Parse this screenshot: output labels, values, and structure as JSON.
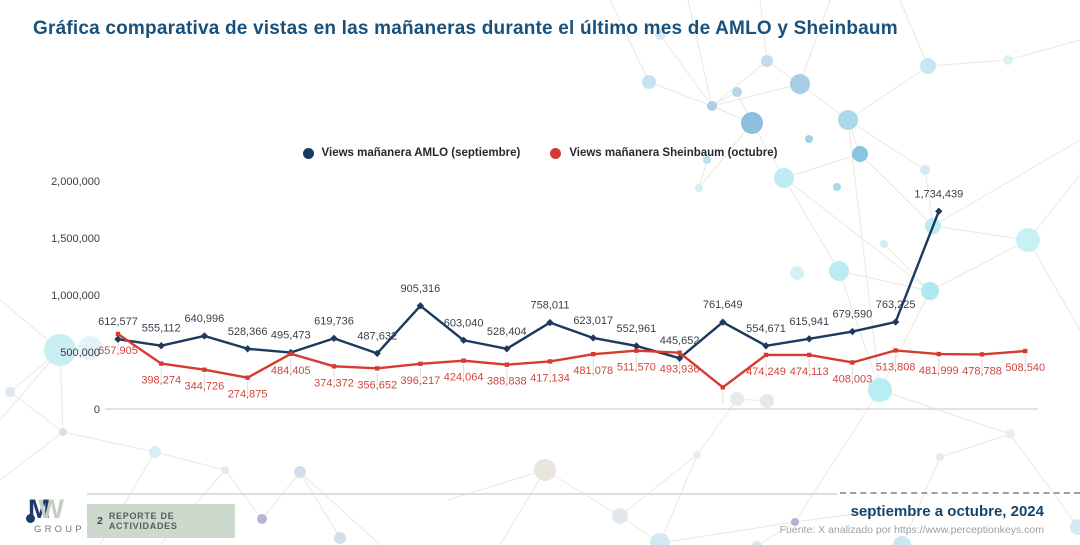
{
  "title": "Gráfica comparativa de vistas en las mañaneras durante el último mes de AMLO y Sheinbaum",
  "colors": {
    "title": "#17517c",
    "amlo_line": "#1b3a5e",
    "amlo_label": "#3a414b",
    "sheinbaum_line": "#d63b30",
    "sheinbaum_label": "#d0463c",
    "axis_line": "#d8d8d8",
    "tick_text": "#3c3c3c",
    "badge_bg": "#ccd9cc",
    "decor_cyan": "#b5ecf2",
    "decor_steel": "#8ebfdc"
  },
  "chart_data": {
    "type": "line",
    "title": "Gráfica comparativa de vistas en las mañaneras durante el último mes de AMLO y Sheinbaum",
    "xlabel": "",
    "ylabel": "",
    "ylim": [
      0,
      2000000
    ],
    "grid": false,
    "legend_position": "top-center",
    "yticks": [
      0,
      500000,
      1000000,
      1500000,
      2000000
    ],
    "ytick_labels": [
      "0",
      "500,000",
      "1,000,000",
      "1,500,000",
      "2,000,000"
    ],
    "series": [
      {
        "name": "Views mañanera AMLO (septiembre)",
        "color": "#1b3a5e",
        "label_color": "#3a414b",
        "label_dy": -14,
        "marker": "diamond",
        "values": [
          612577,
          555112,
          640996,
          528366,
          495473,
          619736,
          487632,
          905316,
          603040,
          528404,
          758011,
          623017,
          552961,
          445652,
          761649,
          554671,
          615941,
          679590,
          763225,
          1734439
        ],
        "labels": [
          "612,577",
          "555,112",
          "640,996",
          "528,366",
          "495,473",
          "619,736",
          "487,632",
          "905,316",
          "603,040",
          "528,404",
          "758,011",
          "623,017",
          "552,961",
          "445,652",
          "761,649",
          "554,671",
          "615,941",
          "679,590",
          "763,225",
          "1,734,439"
        ]
      },
      {
        "name": "Views mañanera Sheinbaum (octubre)",
        "color": "#d63b30",
        "label_color": "#d0463c",
        "label_dy": 20,
        "marker": "square",
        "values": [
          657905,
          398274,
          344726,
          274875,
          484405,
          374372,
          356652,
          396217,
          424064,
          388838,
          417134,
          481078,
          511570,
          493936,
          190000,
          474249,
          474113,
          408003,
          513808,
          481999,
          478788,
          508540
        ],
        "labels": [
          "657,905",
          "398,274",
          "344,726",
          "274,875",
          "484,405",
          "374,372",
          "356,652",
          "396,217",
          "424,064",
          "388,838",
          "417,134",
          "481,078",
          "511,570",
          "493,936",
          "",
          "474,249",
          "474,113",
          "408,003",
          "513,808",
          "481,999",
          "478,788",
          "508,540"
        ]
      }
    ]
  },
  "footer": {
    "logo_m": "M",
    "logo_w": "W",
    "logo_group": "GROUP",
    "badge_number": "2",
    "badge_text": "REPORTE DE ACTIVIDADES",
    "period": "septiembre a octubre, 2024",
    "source": "Fuente: X analizado por https://www.perceptionkeys.com"
  }
}
